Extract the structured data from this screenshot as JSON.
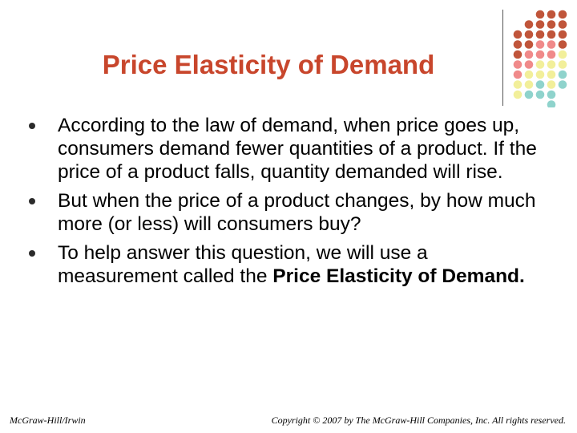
{
  "title": "Price Elasticity of Demand",
  "bullets": [
    [
      {
        "text": "According to the law of demand, when price goes up, consumers demand fewer quantities of a product.  If the price of a product falls, quantity demanded will rise.",
        "bold": false
      }
    ],
    [
      {
        "text": "But when the price of a product changes, by how much more (or less) will consumers buy?",
        "bold": false
      }
    ],
    [
      {
        "text": "To help answer this question, we will use a measurement called the ",
        "bold": false
      },
      {
        "text": "Price Elasticity of Demand.",
        "bold": true
      }
    ]
  ],
  "footer": {
    "left": "McGraw-Hill/Irwin",
    "right": "Copyright © 2007 by The McGraw-Hill Companies, Inc. All rights reserved."
  }
}
